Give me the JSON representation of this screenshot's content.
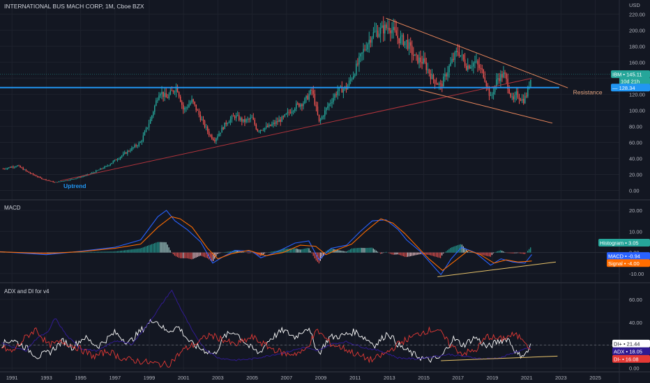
{
  "header": {
    "title": "INTERNATIONAL BUS MACH CORP, 1M, Cboe BZX",
    "currency": "USD"
  },
  "colors": {
    "background": "#131722",
    "grid": "#1e222d",
    "up": "#26a69a",
    "down": "#ef5350",
    "blue_line": "#2196f3",
    "macd_line": "#2962ff",
    "signal_line": "#ff6d00",
    "trendline_red": "#b2343c",
    "trendline_orange": "#f08a5d",
    "resistance": "#2196f3",
    "di_plus": "#ffffff",
    "adx": "#311b92",
    "di_minus": "#e53935",
    "divergence": "#e9c46a"
  },
  "chart_data": [
    {
      "type": "candlestick",
      "pane": "price",
      "title": "INTERNATIONAL BUS MACH CORP, 1M, Cboe BZX",
      "ylabel": "USD",
      "y_ticks": [
        220,
        200,
        180,
        160,
        140,
        120,
        100,
        80,
        60,
        40,
        20,
        0
      ],
      "ylim": [
        -10,
        222
      ],
      "xlim": [
        1990.3,
        2026.4
      ],
      "x_ticks": [
        "1991",
        "1993",
        "1995",
        "1997",
        "1999",
        "2001",
        "2003",
        "2005",
        "2007",
        "2009",
        "2011",
        "2013",
        "2015",
        "2017",
        "2019",
        "2021",
        "2023",
        "2025"
      ],
      "close_anchors": [
        [
          1990.5,
          27
        ],
        [
          1991.3,
          31
        ],
        [
          1992.0,
          22
        ],
        [
          1992.7,
          15
        ],
        [
          1993.5,
          10
        ],
        [
          1994.5,
          14
        ],
        [
          1995.5,
          20
        ],
        [
          1996.5,
          30
        ],
        [
          1997.5,
          45
        ],
        [
          1998.5,
          60
        ],
        [
          1999.1,
          90
        ],
        [
          1999.6,
          125
        ],
        [
          2000.0,
          115
        ],
        [
          2000.6,
          130
        ],
        [
          2001.0,
          100
        ],
        [
          2001.5,
          112
        ],
        [
          2002.0,
          90
        ],
        [
          2002.5,
          70
        ],
        [
          2002.8,
          63
        ],
        [
          2003.5,
          85
        ],
        [
          2004.0,
          93
        ],
        [
          2004.5,
          86
        ],
        [
          2005.0,
          90
        ],
        [
          2005.3,
          75
        ],
        [
          2006.0,
          80
        ],
        [
          2006.8,
          90
        ],
        [
          2007.5,
          105
        ],
        [
          2008.0,
          110
        ],
        [
          2008.5,
          125
        ],
        [
          2008.9,
          85
        ],
        [
          2009.4,
          105
        ],
        [
          2010.0,
          125
        ],
        [
          2010.5,
          128
        ],
        [
          2011.0,
          150
        ],
        [
          2011.5,
          175
        ],
        [
          2012.0,
          195
        ],
        [
          2012.5,
          200
        ],
        [
          2013.0,
          205
        ],
        [
          2013.5,
          190
        ],
        [
          2014.0,
          185
        ],
        [
          2014.5,
          165
        ],
        [
          2015.0,
          160
        ],
        [
          2015.5,
          140
        ],
        [
          2016.0,
          130
        ],
        [
          2016.5,
          155
        ],
        [
          2017.0,
          175
        ],
        [
          2017.5,
          155
        ],
        [
          2018.0,
          160
        ],
        [
          2018.5,
          145
        ],
        [
          2018.9,
          115
        ],
        [
          2019.3,
          140
        ],
        [
          2019.7,
          145
        ],
        [
          2020.2,
          110
        ],
        [
          2020.4,
          120
        ],
        [
          2020.8,
          112
        ],
        [
          2021.0,
          120
        ],
        [
          2021.3,
          145.11
        ]
      ],
      "last_price": "145.11",
      "countdown": "10d 21h",
      "symbol": "IBM",
      "resistance_level": "128.34",
      "annotations": [
        "Uptrend",
        "Resistance"
      ],
      "trendlines": [
        {
          "name": "uptrend-support",
          "from": [
            1993.8,
            12
          ],
          "to": [
            2021.3,
            140
          ]
        },
        {
          "name": "upper-channel",
          "from": [
            2012.8,
            215
          ],
          "to": [
            2023.4,
            128
          ]
        },
        {
          "name": "lower-channel",
          "from": [
            2014.7,
            126
          ],
          "to": [
            2022.5,
            84
          ]
        },
        {
          "name": "resistance",
          "from": [
            1990.3,
            128.34
          ],
          "to": [
            2022.9,
            128.34
          ]
        }
      ]
    },
    {
      "type": "line",
      "pane": "macd",
      "title": "MACD",
      "y_ticks": [
        20,
        10,
        0,
        -10
      ],
      "ylim": [
        -13,
        24
      ],
      "series": [
        {
          "name": "MACD",
          "anchors": [
            [
              1990.3,
              0.4
            ],
            [
              1993.0,
              -1.0
            ],
            [
              1995.0,
              0.6
            ],
            [
              1997.0,
              2.5
            ],
            [
              1998.5,
              6
            ],
            [
              1999.5,
              17
            ],
            [
              2000.0,
              20
            ],
            [
              2000.5,
              15
            ],
            [
              2001.2,
              11
            ],
            [
              2002.0,
              5
            ],
            [
              2002.7,
              -5
            ],
            [
              2003.3,
              -2
            ],
            [
              2004.0,
              1
            ],
            [
              2005.0,
              0.5
            ],
            [
              2005.5,
              -2.5
            ],
            [
              2006.5,
              0.5
            ],
            [
              2007.5,
              4.5
            ],
            [
              2008.3,
              5.5
            ],
            [
              2008.9,
              -3.5
            ],
            [
              2009.6,
              2
            ],
            [
              2010.5,
              3.5
            ],
            [
              2011.3,
              10
            ],
            [
              2012.0,
              15
            ],
            [
              2012.8,
              15.5
            ],
            [
              2013.5,
              11
            ],
            [
              2014.0,
              6
            ],
            [
              2014.8,
              0.5
            ],
            [
              2015.4,
              -5
            ],
            [
              2016.0,
              -10.5
            ],
            [
              2016.6,
              -3
            ],
            [
              2017.2,
              2.5
            ],
            [
              2018.0,
              0
            ],
            [
              2018.9,
              -6
            ],
            [
              2019.5,
              -3
            ],
            [
              2020.2,
              -4.5
            ],
            [
              2020.9,
              -5
            ],
            [
              2021.3,
              -0.94
            ]
          ]
        },
        {
          "name": "Signal",
          "anchors": [
            [
              1990.3,
              0.3
            ],
            [
              1993.0,
              -0.4
            ],
            [
              1995.0,
              0.4
            ],
            [
              1997.0,
              2
            ],
            [
              1998.5,
              4
            ],
            [
              1999.5,
              12
            ],
            [
              2000.3,
              17
            ],
            [
              2000.8,
              16
            ],
            [
              2001.5,
              12
            ],
            [
              2002.4,
              2
            ],
            [
              2003.0,
              -3
            ],
            [
              2003.8,
              -0.5
            ],
            [
              2004.8,
              1
            ],
            [
              2005.8,
              -1.5
            ],
            [
              2006.8,
              0
            ],
            [
              2007.8,
              3.5
            ],
            [
              2008.7,
              3
            ],
            [
              2009.3,
              -1
            ],
            [
              2010.0,
              1.5
            ],
            [
              2010.8,
              4
            ],
            [
              2011.6,
              10
            ],
            [
              2012.5,
              16
            ],
            [
              2013.2,
              14
            ],
            [
              2013.9,
              9
            ],
            [
              2014.6,
              3
            ],
            [
              2015.3,
              -3
            ],
            [
              2016.1,
              -8.5
            ],
            [
              2016.9,
              -3.5
            ],
            [
              2017.6,
              1
            ],
            [
              2018.3,
              -1
            ],
            [
              2019.1,
              -5
            ],
            [
              2019.8,
              -3.5
            ],
            [
              2020.5,
              -4.5
            ],
            [
              2021.3,
              -4.0
            ]
          ]
        }
      ],
      "histogram_last": "3.05",
      "macd_last": "-0.94",
      "signal_last": "-4.00",
      "legend": [
        "Histogram",
        "MACD",
        "Signal"
      ],
      "divergence_line": {
        "from": [
          2015.8,
          -11.5
        ],
        "to": [
          2022.7,
          -4.5
        ]
      }
    },
    {
      "type": "line",
      "pane": "adx",
      "title": "ADX and DI for v4",
      "y_ticks": [
        60,
        40,
        20,
        0
      ],
      "ylim": [
        -2,
        72
      ],
      "series": [
        {
          "name": "DI+",
          "anchors": [
            [
              1990.3,
              20
            ],
            [
              1991.0,
              25
            ],
            [
              1991.8,
              18
            ],
            [
              1992.5,
              10
            ],
            [
              1993.2,
              14
            ],
            [
              1994.0,
              24
            ],
            [
              1994.5,
              18
            ],
            [
              1995.2,
              27
            ],
            [
              1996.0,
              19
            ],
            [
              1997.0,
              31
            ],
            [
              1997.8,
              22
            ],
            [
              1998.6,
              34
            ],
            [
              1999.3,
              43
            ],
            [
              2000.0,
              32
            ],
            [
              2000.7,
              36
            ],
            [
              2001.4,
              22
            ],
            [
              2002.0,
              17
            ],
            [
              2002.8,
              12
            ],
            [
              2003.4,
              28
            ],
            [
              2004.0,
              32
            ],
            [
              2004.8,
              19
            ],
            [
              2005.4,
              13
            ],
            [
              2006.0,
              25
            ],
            [
              2006.8,
              33
            ],
            [
              2007.5,
              27
            ],
            [
              2008.2,
              36
            ],
            [
              2008.9,
              13
            ],
            [
              2009.5,
              27
            ],
            [
              2010.2,
              28
            ],
            [
              2011.0,
              32
            ],
            [
              2011.6,
              26
            ],
            [
              2012.2,
              20
            ],
            [
              2012.9,
              31
            ],
            [
              2013.6,
              19
            ],
            [
              2014.4,
              12
            ],
            [
              2015.2,
              7
            ],
            [
              2016.0,
              9
            ],
            [
              2016.7,
              26
            ],
            [
              2017.3,
              20
            ],
            [
              2018.0,
              27
            ],
            [
              2018.7,
              18
            ],
            [
              2019.3,
              23
            ],
            [
              2019.9,
              26
            ],
            [
              2020.5,
              11
            ],
            [
              2021.0,
              13
            ],
            [
              2021.3,
              21.44
            ]
          ]
        },
        {
          "name": "ADX",
          "anchors": [
            [
              1990.3,
              22
            ],
            [
              1991.0,
              19
            ],
            [
              1991.8,
              15
            ],
            [
              1992.5,
              27
            ],
            [
              1993.1,
              31
            ],
            [
              1993.5,
              44
            ],
            [
              1994.2,
              28
            ],
            [
              1995.0,
              17
            ],
            [
              1996.0,
              15
            ],
            [
              1997.0,
              24
            ],
            [
              1998.0,
              21
            ],
            [
              1999.0,
              40
            ],
            [
              1999.7,
              55
            ],
            [
              2000.3,
              68
            ],
            [
              2000.9,
              50
            ],
            [
              2001.6,
              30
            ],
            [
              2002.3,
              16
            ],
            [
              2003.0,
              9
            ],
            [
              2004.0,
              7
            ],
            [
              2005.0,
              8
            ],
            [
              2006.0,
              11
            ],
            [
              2007.0,
              14
            ],
            [
              2008.0,
              18
            ],
            [
              2008.8,
              15
            ],
            [
              2009.6,
              21
            ],
            [
              2010.5,
              23
            ],
            [
              2011.5,
              18
            ],
            [
              2012.5,
              15
            ],
            [
              2013.5,
              9
            ],
            [
              2014.5,
              8
            ],
            [
              2015.5,
              10
            ],
            [
              2016.5,
              12
            ],
            [
              2017.5,
              10
            ],
            [
              2018.5,
              8
            ],
            [
              2019.5,
              9
            ],
            [
              2020.3,
              14
            ],
            [
              2021.3,
              18.05
            ]
          ]
        },
        {
          "name": "DI-",
          "anchors": [
            [
              1990.3,
              19
            ],
            [
              1991.0,
              14
            ],
            [
              1991.8,
              27
            ],
            [
              1992.4,
              34
            ],
            [
              1993.1,
              20
            ],
            [
              1994.0,
              23
            ],
            [
              1994.8,
              18
            ],
            [
              1995.8,
              10
            ],
            [
              1996.6,
              15
            ],
            [
              1997.5,
              8
            ],
            [
              1998.5,
              6
            ],
            [
              1999.3,
              4
            ],
            [
              2000.1,
              3
            ],
            [
              2001.0,
              16
            ],
            [
              2001.8,
              22
            ],
            [
              2002.5,
              29
            ],
            [
              2003.3,
              25
            ],
            [
              2004.0,
              20
            ],
            [
              2005.0,
              27
            ],
            [
              2006.0,
              18
            ],
            [
              2007.0,
              12
            ],
            [
              2008.0,
              14
            ],
            [
              2008.8,
              33
            ],
            [
              2009.6,
              21
            ],
            [
              2010.4,
              17
            ],
            [
              2011.2,
              11
            ],
            [
              2012.0,
              7
            ],
            [
              2012.8,
              13
            ],
            [
              2013.6,
              22
            ],
            [
              2014.3,
              27
            ],
            [
              2015.0,
              32
            ],
            [
              2015.8,
              34
            ],
            [
              2016.5,
              21
            ],
            [
              2017.2,
              13
            ],
            [
              2018.0,
              15
            ],
            [
              2018.7,
              28
            ],
            [
              2019.4,
              25
            ],
            [
              2020.2,
              29
            ],
            [
              2020.8,
              26
            ],
            [
              2021.3,
              16.08
            ]
          ]
        }
      ],
      "legend_values": {
        "DI+": "21.44",
        "ADX": "18.05",
        "DI-": "16.08"
      },
      "divergence_line": {
        "from": [
          2016.0,
          6.5
        ],
        "to": [
          2022.8,
          10.5
        ]
      }
    }
  ]
}
